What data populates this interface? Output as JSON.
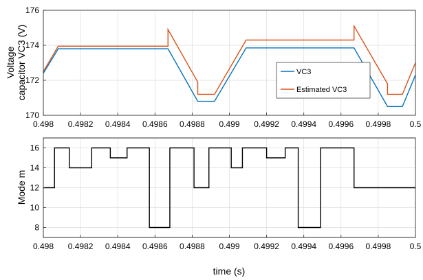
{
  "chart_data": [
    {
      "type": "line",
      "ylabel_lines": [
        "Voltage",
        "capacitor VC3  (V)"
      ],
      "xlabel": "",
      "xlim": [
        0.498,
        0.5
      ],
      "ylim": [
        170,
        176
      ],
      "xticks": [
        0.498,
        0.4982,
        0.4984,
        0.4986,
        0.4988,
        0.499,
        0.4992,
        0.4994,
        0.4996,
        0.4998,
        0.5
      ],
      "xtick_labels": [
        "0.498",
        "0.4982",
        "0.4984",
        "0.4986",
        "0.4988",
        "0.499",
        "0.4992",
        "0.4994",
        "0.4996",
        "0.4998",
        "0.5"
      ],
      "yticks": [
        170,
        172,
        174,
        176
      ],
      "ytick_labels": [
        "170",
        "172",
        "174",
        "176"
      ],
      "grid": true,
      "legend_position": "center-right",
      "series": [
        {
          "name": "VC3",
          "color": "#0072BD",
          "x": [
            0.498,
            0.49808,
            0.49867,
            0.49883,
            0.49892,
            0.49909,
            0.49967,
            0.49985,
            0.49993,
            0.5
          ],
          "y": [
            172.4,
            173.8,
            173.8,
            170.8,
            170.8,
            173.85,
            173.85,
            170.5,
            170.5,
            172.3
          ]
        },
        {
          "name": "Estimated VC3",
          "color": "#D95319",
          "x": [
            0.498,
            0.49808,
            0.49867,
            0.49867,
            0.49883,
            0.49883,
            0.49892,
            0.49909,
            0.49967,
            0.49967,
            0.49985,
            0.49985,
            0.49993,
            0.5
          ],
          "y": [
            172.5,
            173.95,
            173.95,
            174.9,
            171.9,
            171.2,
            171.2,
            174.3,
            174.3,
            175.1,
            171.8,
            171.2,
            171.2,
            173.0
          ]
        }
      ]
    },
    {
      "type": "line",
      "ylabel": "Mode m",
      "xlabel": "time (s)",
      "xlim": [
        0.498,
        0.5
      ],
      "ylim": [
        7,
        17
      ],
      "xticks": [
        0.498,
        0.4982,
        0.4984,
        0.4986,
        0.4988,
        0.499,
        0.4992,
        0.4994,
        0.4996,
        0.4998,
        0.5
      ],
      "xtick_labels": [
        "0.498",
        "0.4982",
        "0.4984",
        "0.4986",
        "0.4988",
        "0.499",
        "0.4992",
        "0.4994",
        "0.4996",
        "0.4998",
        "0.5"
      ],
      "yticks": [
        8,
        10,
        12,
        14,
        16
      ],
      "ytick_labels": [
        "8",
        "10",
        "12",
        "14",
        "16"
      ],
      "grid": true,
      "series": [
        {
          "color": "#000000",
          "step": true,
          "x": [
            0.498,
            0.49806,
            0.49814,
            0.49826,
            0.49836,
            0.49845,
            0.49857,
            0.49868,
            0.49881,
            0.49889,
            0.49901,
            0.49907,
            0.4992,
            0.4993,
            0.49937,
            0.49949,
            0.49967,
            0.49984,
            0.49992,
            0.5
          ],
          "y": [
            12,
            16,
            14,
            16,
            15,
            16,
            8,
            16,
            12,
            16,
            14,
            16,
            15,
            16,
            8,
            16,
            12,
            12,
            12,
            12
          ]
        }
      ]
    }
  ]
}
